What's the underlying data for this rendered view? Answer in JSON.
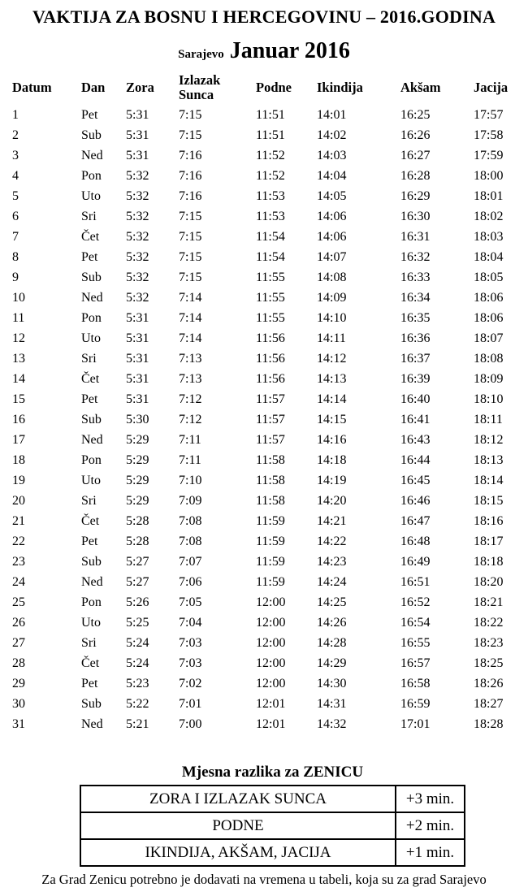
{
  "page": {
    "title": "VAKTIJA ZA BOSNU I HERCEGOVINU – 2016.GODINA",
    "city": "Sarajevo",
    "month": "Januar 2016",
    "text_color": "#000000",
    "background_color": "#ffffff"
  },
  "prayer_table": {
    "columns": [
      "Datum",
      "Dan",
      "Zora",
      "Izlazak\nSunca",
      "Podne",
      "Ikindija",
      "Akšam",
      "Jacija"
    ],
    "rows": [
      [
        "1",
        "Pet",
        "5:31",
        "7:15",
        "11:51",
        "14:01",
        "16:25",
        "17:57"
      ],
      [
        "2",
        "Sub",
        "5:31",
        "7:15",
        "11:51",
        "14:02",
        "16:26",
        "17:58"
      ],
      [
        "3",
        "Ned",
        "5:31",
        "7:16",
        "11:52",
        "14:03",
        "16:27",
        "17:59"
      ],
      [
        "4",
        "Pon",
        "5:32",
        "7:16",
        "11:52",
        "14:04",
        "16:28",
        "18:00"
      ],
      [
        "5",
        "Uto",
        "5:32",
        "7:16",
        "11:53",
        "14:05",
        "16:29",
        "18:01"
      ],
      [
        "6",
        "Sri",
        "5:32",
        "7:15",
        "11:53",
        "14:06",
        "16:30",
        "18:02"
      ],
      [
        "7",
        "Čet",
        "5:32",
        "7:15",
        "11:54",
        "14:06",
        "16:31",
        "18:03"
      ],
      [
        "8",
        "Pet",
        "5:32",
        "7:15",
        "11:54",
        "14:07",
        "16:32",
        "18:04"
      ],
      [
        "9",
        "Sub",
        "5:32",
        "7:15",
        "11:55",
        "14:08",
        "16:33",
        "18:05"
      ],
      [
        "10",
        "Ned",
        "5:32",
        "7:14",
        "11:55",
        "14:09",
        "16:34",
        "18:06"
      ],
      [
        "11",
        "Pon",
        "5:31",
        "7:14",
        "11:55",
        "14:10",
        "16:35",
        "18:06"
      ],
      [
        "12",
        "Uto",
        "5:31",
        "7:14",
        "11:56",
        "14:11",
        "16:36",
        "18:07"
      ],
      [
        "13",
        "Sri",
        "5:31",
        "7:13",
        "11:56",
        "14:12",
        "16:37",
        "18:08"
      ],
      [
        "14",
        "Čet",
        "5:31",
        "7:13",
        "11:56",
        "14:13",
        "16:39",
        "18:09"
      ],
      [
        "15",
        "Pet",
        "5:31",
        "7:12",
        "11:57",
        "14:14",
        "16:40",
        "18:10"
      ],
      [
        "16",
        "Sub",
        "5:30",
        "7:12",
        "11:57",
        "14:15",
        "16:41",
        "18:11"
      ],
      [
        "17",
        "Ned",
        "5:29",
        "7:11",
        "11:57",
        "14:16",
        "16:43",
        "18:12"
      ],
      [
        "18",
        "Pon",
        "5:29",
        "7:11",
        "11:58",
        "14:18",
        "16:44",
        "18:13"
      ],
      [
        "19",
        "Uto",
        "5:29",
        "7:10",
        "11:58",
        "14:19",
        "16:45",
        "18:14"
      ],
      [
        "20",
        "Sri",
        "5:29",
        "7:09",
        "11:58",
        "14:20",
        "16:46",
        "18:15"
      ],
      [
        "21",
        "Čet",
        "5:28",
        "7:08",
        "11:59",
        "14:21",
        "16:47",
        "18:16"
      ],
      [
        "22",
        "Pet",
        "5:28",
        "7:08",
        "11:59",
        "14:22",
        "16:48",
        "18:17"
      ],
      [
        "23",
        "Sub",
        "5:27",
        "7:07",
        "11:59",
        "14:23",
        "16:49",
        "18:18"
      ],
      [
        "24",
        "Ned",
        "5:27",
        "7:06",
        "11:59",
        "14:24",
        "16:51",
        "18:20"
      ],
      [
        "25",
        "Pon",
        "5:26",
        "7:05",
        "12:00",
        "14:25",
        "16:52",
        "18:21"
      ],
      [
        "26",
        "Uto",
        "5:25",
        "7:04",
        "12:00",
        "14:26",
        "16:54",
        "18:22"
      ],
      [
        "27",
        "Sri",
        "5:24",
        "7:03",
        "12:00",
        "14:28",
        "16:55",
        "18:23"
      ],
      [
        "28",
        "Čet",
        "5:24",
        "7:03",
        "12:00",
        "14:29",
        "16:57",
        "18:25"
      ],
      [
        "29",
        "Pet",
        "5:23",
        "7:02",
        "12:00",
        "14:30",
        "16:58",
        "18:26"
      ],
      [
        "30",
        "Sub",
        "5:22",
        "7:01",
        "12:01",
        "14:31",
        "16:59",
        "18:27"
      ],
      [
        "31",
        "Ned",
        "5:21",
        "7:00",
        "12:01",
        "14:32",
        "17:01",
        "18:28"
      ]
    ]
  },
  "zenica": {
    "heading": "Mjesna razlika za ZENICU",
    "rows": [
      {
        "label": "ZORA I IZLAZAK SUNCA",
        "offset": "+3 min."
      },
      {
        "label": "PODNE",
        "offset": "+2 min."
      },
      {
        "label": "IKINDIJA, AKŠAM, JACIJA",
        "offset": "+1 min."
      }
    ],
    "note": "Za Grad Zenicu potrebno je dodavati na vremena u tabeli, koja su za grad Sarajevo"
  }
}
